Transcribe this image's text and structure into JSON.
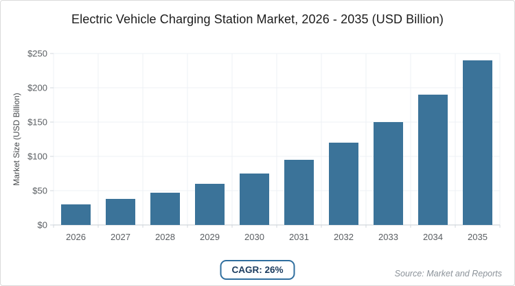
{
  "card": {
    "title": "Electric Vehicle Charging Station Market, 2026 - 2035 (USD Billion)",
    "cagr_label": "CAGR: 26%",
    "source": "Source: Market and Reports"
  },
  "colors": {
    "bar": "#3b7399",
    "grid": "#eef1f5",
    "axis_line": "#d2d7dc",
    "tick_text": "#595d61",
    "ytitle_text": "#46494c",
    "title_text": "#1b1b1b",
    "badge_border": "#2f6e9e",
    "badge_text": "#1d3d60",
    "source_text": "#8b9299",
    "card_border": "#dadada"
  },
  "chart_data": {
    "type": "bar",
    "title": "Electric Vehicle Charging Station Market, 2026 - 2035 (USD Billion)",
    "categories": [
      "2026",
      "2027",
      "2028",
      "2029",
      "2030",
      "2031",
      "2032",
      "2033",
      "2034",
      "2035"
    ],
    "values": [
      30,
      38,
      47,
      60,
      75,
      95,
      120,
      150,
      190,
      240
    ],
    "xlabel": "",
    "ylabel": "Market Size (USD Billion)",
    "ylim": [
      0,
      250
    ],
    "ytick_step": 50,
    "ytick_prefix": "$",
    "grid": true,
    "legend": false,
    "annotation": "CAGR: 26%",
    "source": "Source: Market and Reports"
  }
}
